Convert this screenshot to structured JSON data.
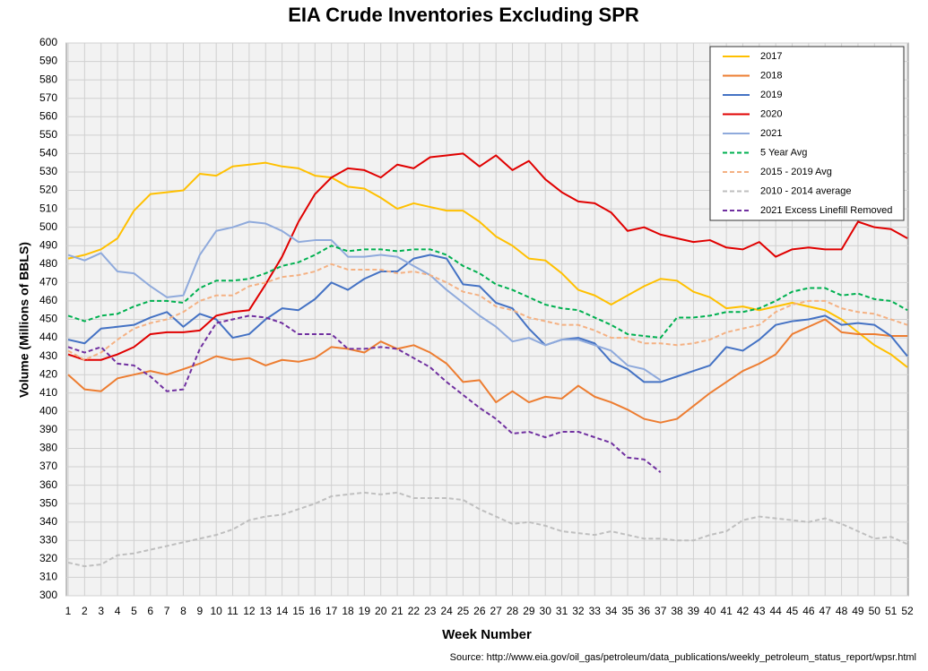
{
  "chart_data": {
    "type": "line",
    "title": "EIA Crude Inventories Excluding SPR",
    "x_label": "Week Number",
    "y_label": "Volume (Millions of BBLS)",
    "source": "Source: http://www.eia.gov/oil_gas/petroleum/data_publications/weekly_petroleum_status_report/wpsr.html",
    "x": [
      1,
      2,
      3,
      4,
      5,
      6,
      7,
      8,
      9,
      10,
      11,
      12,
      13,
      14,
      15,
      16,
      17,
      18,
      19,
      20,
      21,
      22,
      23,
      24,
      25,
      26,
      27,
      28,
      29,
      30,
      31,
      32,
      33,
      34,
      35,
      36,
      37,
      38,
      39,
      40,
      41,
      42,
      43,
      44,
      45,
      46,
      47,
      48,
      49,
      50,
      51,
      52
    ],
    "xlim": [
      1,
      52
    ],
    "xticks": [
      1,
      2,
      3,
      4,
      5,
      6,
      7,
      8,
      9,
      10,
      11,
      12,
      13,
      14,
      15,
      16,
      17,
      18,
      19,
      20,
      21,
      22,
      23,
      24,
      25,
      26,
      27,
      28,
      29,
      30,
      31,
      32,
      33,
      34,
      35,
      36,
      37,
      38,
      39,
      40,
      41,
      42,
      43,
      44,
      45,
      46,
      47,
      48,
      49,
      50,
      51,
      52
    ],
    "ylim": [
      300,
      600
    ],
    "yticks": [
      300,
      310,
      320,
      330,
      340,
      350,
      360,
      370,
      380,
      390,
      400,
      410,
      420,
      430,
      440,
      450,
      460,
      470,
      480,
      490,
      500,
      510,
      520,
      530,
      540,
      550,
      560,
      570,
      580,
      590,
      600
    ],
    "grid": true,
    "legend": "top-right",
    "series": [
      {
        "name": "2017",
        "color": "#ffc000",
        "style": "solid",
        "values": [
          483,
          485,
          488,
          494,
          509,
          518,
          519,
          520,
          529,
          528,
          533,
          534,
          535,
          533,
          532,
          528,
          527,
          522,
          521,
          516,
          510,
          513,
          511,
          509,
          509,
          503,
          495,
          490,
          483,
          482,
          475,
          466,
          463,
          458,
          463,
          468,
          472,
          471,
          465,
          462,
          456,
          457,
          455,
          457,
          459,
          457,
          455,
          450,
          443,
          436,
          431,
          424
        ]
      },
      {
        "name": "2018",
        "color": "#ed7d31",
        "style": "solid",
        "values": [
          420,
          412,
          411,
          418,
          420,
          422,
          420,
          423,
          426,
          430,
          428,
          429,
          425,
          428,
          427,
          429,
          435,
          434,
          432,
          438,
          434,
          436,
          432,
          426,
          416,
          417,
          405,
          411,
          405,
          408,
          407,
          414,
          408,
          405,
          401,
          396,
          394,
          396,
          403,
          410,
          416,
          422,
          426,
          431,
          442,
          446,
          450,
          443,
          442,
          442,
          441,
          441
        ]
      },
      {
        "name": "2019",
        "color": "#4472c4",
        "style": "solid",
        "values": [
          439,
          437,
          445,
          446,
          447,
          451,
          454,
          446,
          453,
          450,
          440,
          442,
          450,
          456,
          455,
          461,
          470,
          466,
          472,
          476,
          476,
          483,
          485,
          483,
          469,
          468,
          459,
          456,
          445,
          436,
          439,
          440,
          437,
          427,
          423,
          416,
          416,
          419,
          422,
          425,
          435,
          433,
          439,
          447,
          449,
          450,
          452,
          447,
          448,
          447,
          441,
          430
        ]
      },
      {
        "name": "2020",
        "color": "#e00000",
        "style": "solid",
        "values": [
          431,
          428,
          428,
          431,
          435,
          442,
          443,
          443,
          444,
          452,
          454,
          455,
          469,
          484,
          503,
          518,
          527,
          532,
          531,
          527,
          534,
          532,
          538,
          539,
          540,
          533,
          539,
          531,
          536,
          526,
          519,
          514,
          513,
          508,
          498,
          500,
          496,
          494,
          492,
          493,
          489,
          488,
          492,
          484,
          488,
          489,
          488,
          488,
          503,
          500,
          499,
          494
        ]
      },
      {
        "name": "2021",
        "color": "#8faadc",
        "style": "solid",
        "values": [
          485,
          482,
          486,
          476,
          475,
          468,
          462,
          463,
          485,
          498,
          500,
          503,
          502,
          498,
          492,
          493,
          493,
          484,
          484,
          485,
          484,
          479,
          474,
          466,
          459,
          452,
          446,
          438,
          440,
          436,
          439,
          439,
          436,
          433,
          425,
          423,
          417,
          null,
          null,
          null,
          null,
          null,
          null,
          null,
          null,
          null,
          null,
          null,
          null,
          null,
          null,
          null
        ]
      },
      {
        "name": "5 Year Avg",
        "color": "#00b050",
        "style": "dashed",
        "values": [
          452,
          449,
          452,
          453,
          457,
          460,
          460,
          459,
          467,
          471,
          471,
          472,
          475,
          479,
          481,
          485,
          490,
          487,
          488,
          488,
          487,
          488,
          488,
          485,
          479,
          475,
          469,
          466,
          462,
          458,
          456,
          455,
          451,
          447,
          442,
          441,
          440,
          451,
          451,
          452,
          454,
          454,
          456,
          460,
          465,
          467,
          467,
          463,
          464,
          461,
          460,
          455
        ]
      },
      {
        "name": "2015 - 2019 Avg",
        "color": "#f4b183",
        "style": "dashed",
        "values": [
          433,
          428,
          432,
          439,
          445,
          448,
          450,
          454,
          460,
          463,
          463,
          468,
          470,
          473,
          474,
          476,
          480,
          477,
          477,
          477,
          475,
          476,
          474,
          470,
          465,
          463,
          457,
          455,
          451,
          449,
          447,
          447,
          444,
          440,
          440,
          437,
          437,
          436,
          437,
          439,
          443,
          445,
          447,
          454,
          458,
          460,
          460,
          456,
          454,
          453,
          450,
          447
        ]
      },
      {
        "name": "2010 - 2014 average",
        "color": "#bfbfbf",
        "style": "dashed",
        "values": [
          318,
          316,
          317,
          322,
          323,
          325,
          327,
          329,
          331,
          333,
          336,
          341,
          343,
          344,
          347,
          350,
          354,
          355,
          356,
          355,
          356,
          353,
          353,
          353,
          352,
          347,
          343,
          339,
          340,
          338,
          335,
          334,
          333,
          335,
          333,
          331,
          331,
          330,
          330,
          333,
          335,
          341,
          343,
          342,
          341,
          340,
          342,
          339,
          335,
          331,
          332,
          328
        ]
      },
      {
        "name": "2021 Excess Linefill Removed",
        "color": "#7030a0",
        "style": "dashed",
        "values": [
          435,
          432,
          435,
          426,
          425,
          419,
          411,
          412,
          434,
          448,
          450,
          452,
          451,
          448,
          442,
          442,
          442,
          434,
          434,
          435,
          434,
          429,
          424,
          416,
          409,
          402,
          396,
          388,
          389,
          386,
          389,
          389,
          386,
          383,
          375,
          374,
          367,
          null,
          null,
          null,
          null,
          null,
          null,
          null,
          null,
          null,
          null,
          null,
          null,
          null,
          null,
          null
        ]
      }
    ]
  }
}
